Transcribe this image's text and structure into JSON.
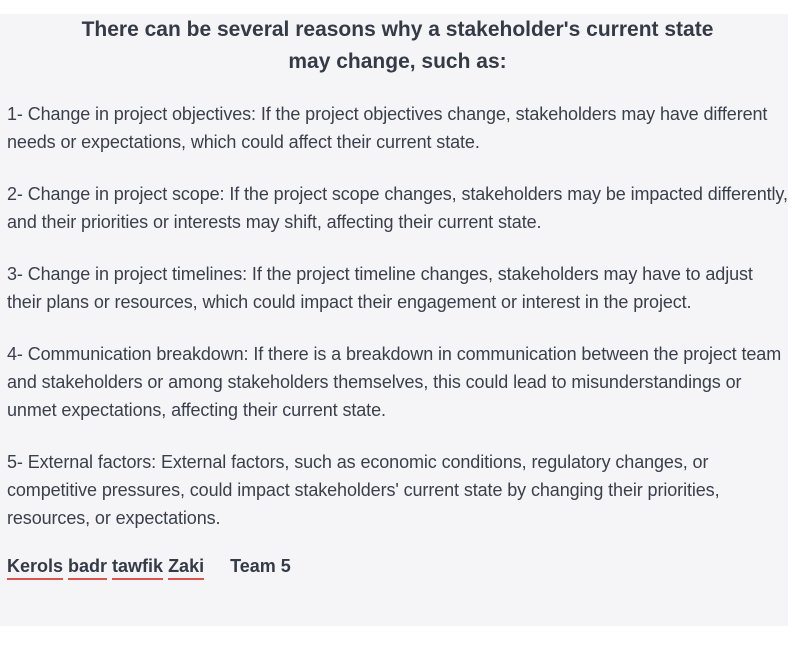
{
  "title": {
    "line1": "There can be several reasons why a stakeholder's current state",
    "line2": "may change, such as:"
  },
  "reasons": [
    "1- Change in project objectives: If the project objectives change, stakeholders may have different needs or expectations, which could affect their current state.",
    "2- Change in project scope: If the project scope changes, stakeholders may be impacted differently, and their priorities or interests may shift, affecting their current state.",
    "3- Change in project timelines: If the project timeline changes, stakeholders may have to adjust their plans or resources, which could impact their engagement or interest in the project.",
    "4- Communication breakdown: If there is a breakdown in communication between the project team and stakeholders or among stakeholders themselves, this could lead to misunderstandings or unmet expectations, affecting their current state.",
    "5- External factors: External factors, such as economic conditions, regulatory changes, or competitive pressures, could impact stakeholders' current state by changing their priorities, resources, or expectations."
  ],
  "signature": {
    "name_words": [
      "Kerols",
      "badr",
      "tawfik",
      "Zaki"
    ],
    "team": "Team 5"
  },
  "colors": {
    "card_background": "#f5f5f7",
    "text": "#3a3f4b",
    "spellcheck_underline": "#d9534f"
  }
}
